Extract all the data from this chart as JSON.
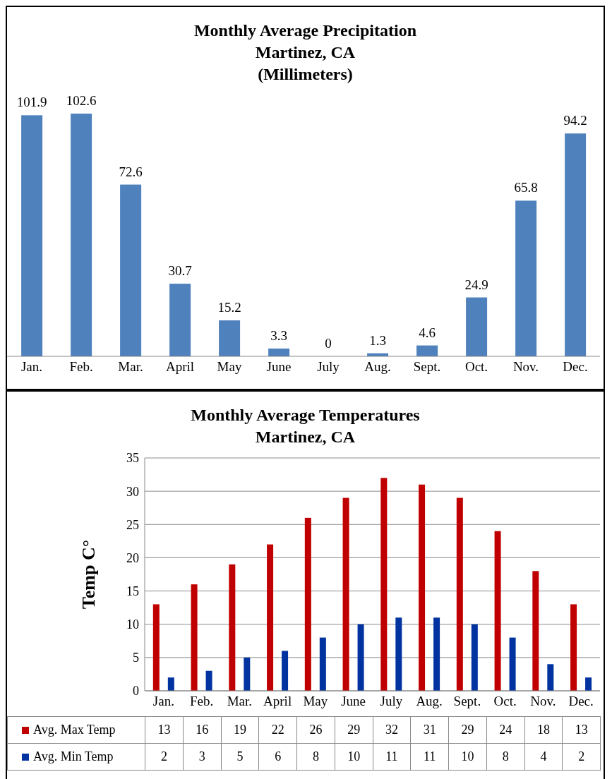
{
  "chart_data": [
    {
      "type": "bar",
      "title": "Monthly Average Precipitation\nMartinez, CA\n(Millimeters)",
      "categories": [
        "Jan.",
        "Feb.",
        "Mar.",
        "April",
        "May",
        "June",
        "July",
        "Aug.",
        "Sept.",
        "Oct.",
        "Nov.",
        "Dec."
      ],
      "values": [
        101.9,
        102.6,
        72.6,
        30.7,
        15.2,
        3.3,
        0,
        1.3,
        4.6,
        24.9,
        65.8,
        94.2
      ],
      "color": "#4f81bd",
      "data_labels": true
    },
    {
      "type": "bar",
      "title": "Monthly Average Temperatures\nMartinez, CA",
      "ylabel": "Temp C°",
      "categories": [
        "Jan.",
        "Feb.",
        "Mar.",
        "April",
        "May",
        "June",
        "July",
        "Aug.",
        "Sept.",
        "Oct.",
        "Nov.",
        "Dec."
      ],
      "series": [
        {
          "name": "Avg. Max  Temp",
          "color": "#c00000",
          "values": [
            13,
            16,
            19,
            22,
            26,
            29,
            32,
            31,
            29,
            24,
            18,
            13
          ]
        },
        {
          "name": "Avg. Min Temp",
          "color": "#0033a0",
          "values": [
            2,
            3,
            5,
            6,
            8,
            10,
            11,
            11,
            10,
            8,
            4,
            2
          ]
        }
      ],
      "ylim": [
        0,
        35
      ],
      "yticks": [
        0,
        5,
        10,
        15,
        20,
        25,
        30,
        35
      ],
      "grid": "y",
      "legend": "bottom",
      "data_labels": true
    }
  ]
}
